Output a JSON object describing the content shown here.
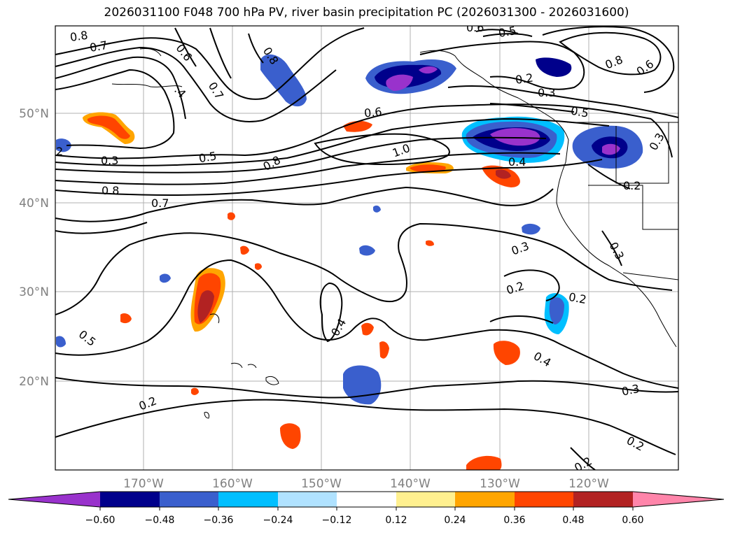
{
  "title": "2026031100 F048 700 hPa PV, river basin precipitation PC (2026031300 - 2026031600)",
  "map": {
    "lon_ticks": [
      "170°W",
      "160°W",
      "150°W",
      "140°W",
      "130°W",
      "120°W"
    ],
    "lat_ticks": [
      "50°N",
      "40°N",
      "30°N",
      "20°N"
    ]
  },
  "contour_labels": [
    {
      "id": "a",
      "text": "0.8"
    },
    {
      "id": "b",
      "text": "0.7"
    },
    {
      "id": "c",
      "text": "0.6"
    },
    {
      "id": "d",
      "text": ".4"
    },
    {
      "id": "e",
      "text": "0.7"
    },
    {
      "id": "f",
      "text": "0.8"
    },
    {
      "id": "g",
      "text": "0.6"
    },
    {
      "id": "h",
      "text": "0.5"
    },
    {
      "id": "i",
      "text": "0.8"
    },
    {
      "id": "j",
      "text": "0.6"
    },
    {
      "id": "k",
      "text": "0.2"
    },
    {
      "id": "l",
      "text": "0.3"
    },
    {
      "id": "m",
      "text": "0.5"
    },
    {
      "id": "n",
      "text": "2"
    },
    {
      "id": "o",
      "text": "0.3"
    },
    {
      "id": "p",
      "text": "0.5"
    },
    {
      "id": "q",
      "text": "0.6"
    },
    {
      "id": "r",
      "text": "0.8"
    },
    {
      "id": "s",
      "text": "1.0"
    },
    {
      "id": "t",
      "text": "0.4"
    },
    {
      "id": "u",
      "text": "0.3"
    },
    {
      "id": "v",
      "text": "0.2"
    },
    {
      "id": "w",
      "text": "0.8"
    },
    {
      "id": "x",
      "text": "0.7"
    },
    {
      "id": "y",
      "text": "0.3"
    },
    {
      "id": "z",
      "text": "0.3"
    },
    {
      "id": "aa",
      "text": "0.2"
    },
    {
      "id": "ab",
      "text": "0.2"
    },
    {
      "id": "ac",
      "text": "0.4"
    },
    {
      "id": "ad",
      "text": "0.5"
    },
    {
      "id": "ae",
      "text": "0.4"
    },
    {
      "id": "af",
      "text": "0.3"
    },
    {
      "id": "ag",
      "text": "0.2"
    },
    {
      "id": "ah",
      "text": "0.2"
    },
    {
      "id": "ai",
      "text": "0.2"
    }
  ],
  "colorbar": {
    "labels": [
      "−0.60",
      "−0.48",
      "−0.36",
      "−0.24",
      "−0.12",
      "0.12",
      "0.24",
      "0.36",
      "0.48",
      "0.60"
    ],
    "colors": [
      "#9932cc",
      "#00008b",
      "#3a5fcd",
      "#00bfff",
      "#b0e2ff",
      "#ffffff",
      "#fff08f",
      "#ffa500",
      "#ff4500",
      "#b22222",
      "#ff85aa"
    ]
  }
}
